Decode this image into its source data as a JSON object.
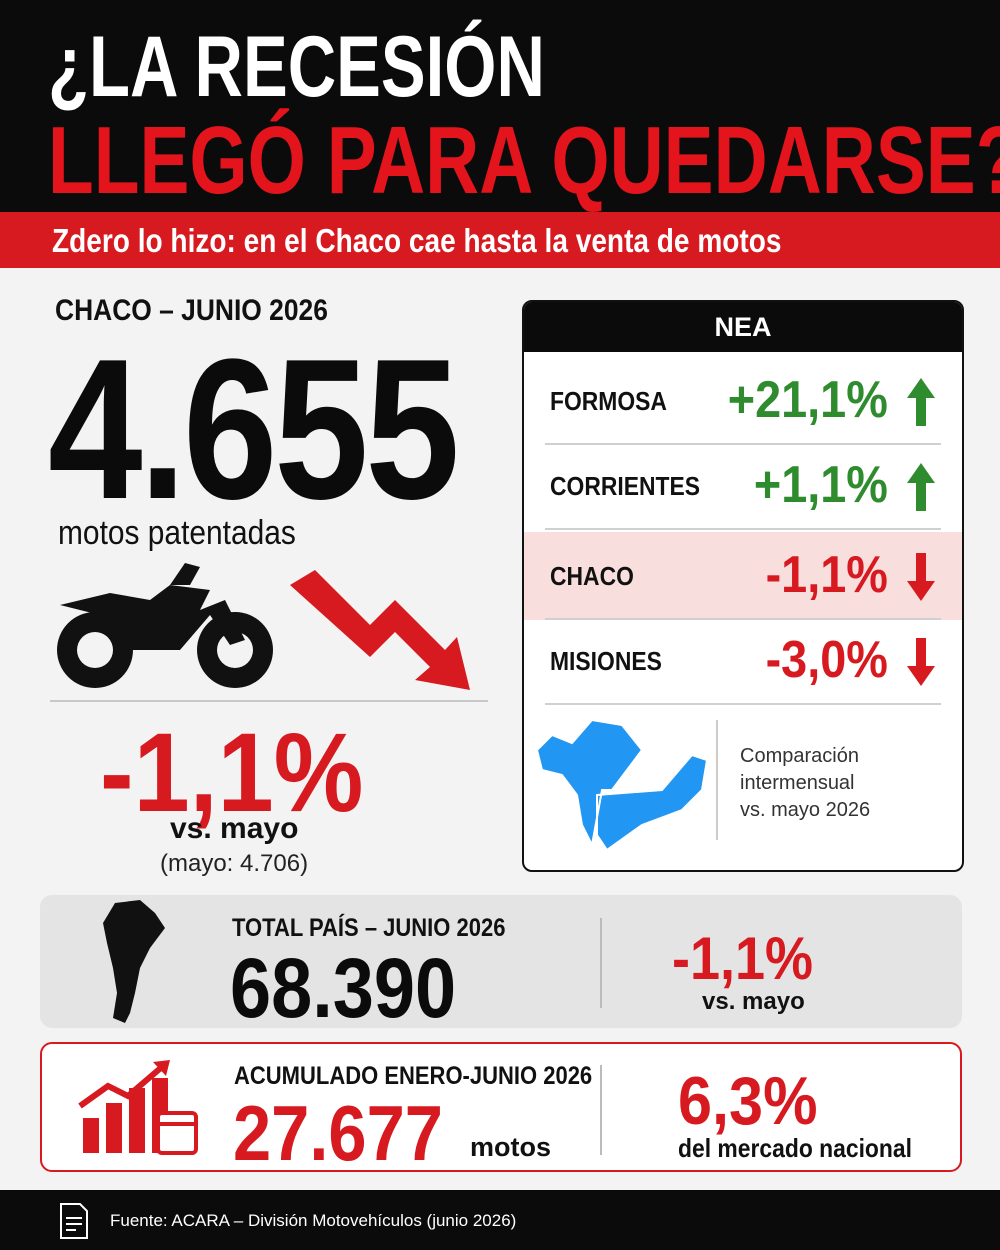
{
  "header": {
    "title_line1": "¿LA RECESIÓN",
    "title_line2": "LLEGÓ PARA QUEDARSE?",
    "subtitle": "Zdero lo hizo: en el Chaco cae hasta la venta de motos"
  },
  "chaco": {
    "label": "CHACO – JUNIO 2026",
    "value": "4.655",
    "unit": "motos patentadas",
    "change": "-1,1%",
    "change_note": "vs. mayo",
    "previous": "(mayo: 4.706)"
  },
  "nea": {
    "title": "NEA",
    "rows": [
      [
        "FORMOSA",
        "+21,1%"
      ],
      [
        "CORRIENTES",
        "+1,1%"
      ],
      [
        "CHACO",
        "-1,1%"
      ],
      [
        "MISIONES",
        "-3,0%"
      ]
    ],
    "note": [
      "Comparación",
      "intermensual",
      "vs. mayo 2026"
    ]
  },
  "total": {
    "label": "TOTAL PAÍS – JUNIO 2026",
    "value": "68.390",
    "change": "-1,1%",
    "change_note": "vs. mayo"
  },
  "accumulated": {
    "label": "ACUMULADO ENERO-JUNIO 2026",
    "value": "27.677",
    "unit": "motos",
    "share": "6,3%",
    "share_note": "del mercado nacional"
  },
  "footer": {
    "source": "Fuente: ACARA – División Motovehículos (junio 2026)"
  }
}
